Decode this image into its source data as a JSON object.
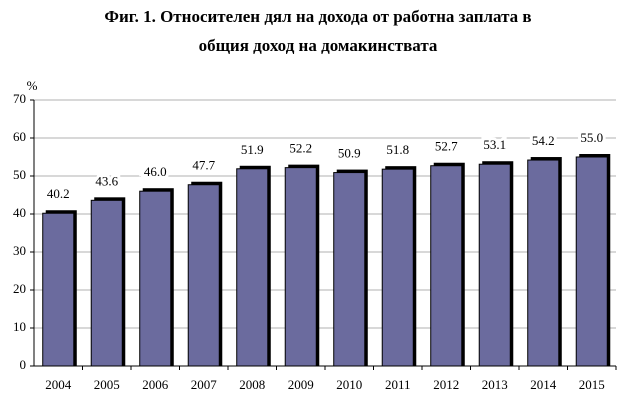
{
  "chart_data": {
    "type": "bar",
    "title": [
      "Фиг. 1. Относителен дял на дохода от работна заплата в",
      "общия доход на домакинствата"
    ],
    "y_label": "%",
    "categories": [
      "2004",
      "2005",
      "2006",
      "2007",
      "2008",
      "2009",
      "2010",
      "2011",
      "2012",
      "2013",
      "2014",
      "2015"
    ],
    "values": [
      40.2,
      43.6,
      46.0,
      47.7,
      51.9,
      52.2,
      50.9,
      51.8,
      52.7,
      53.1,
      54.2,
      55.0
    ],
    "value_labels": [
      "40.2",
      "43.6",
      "46.0",
      "47.7",
      "51.9",
      "52.2",
      "50.9",
      "51.8",
      "52.7",
      "53.1",
      "54.2",
      "55.0"
    ],
    "color": "#6b6b9e",
    "ylim": [
      0,
      70
    ],
    "yticks": [
      0,
      10,
      20,
      30,
      40,
      50,
      60,
      70
    ],
    "grid": true
  }
}
